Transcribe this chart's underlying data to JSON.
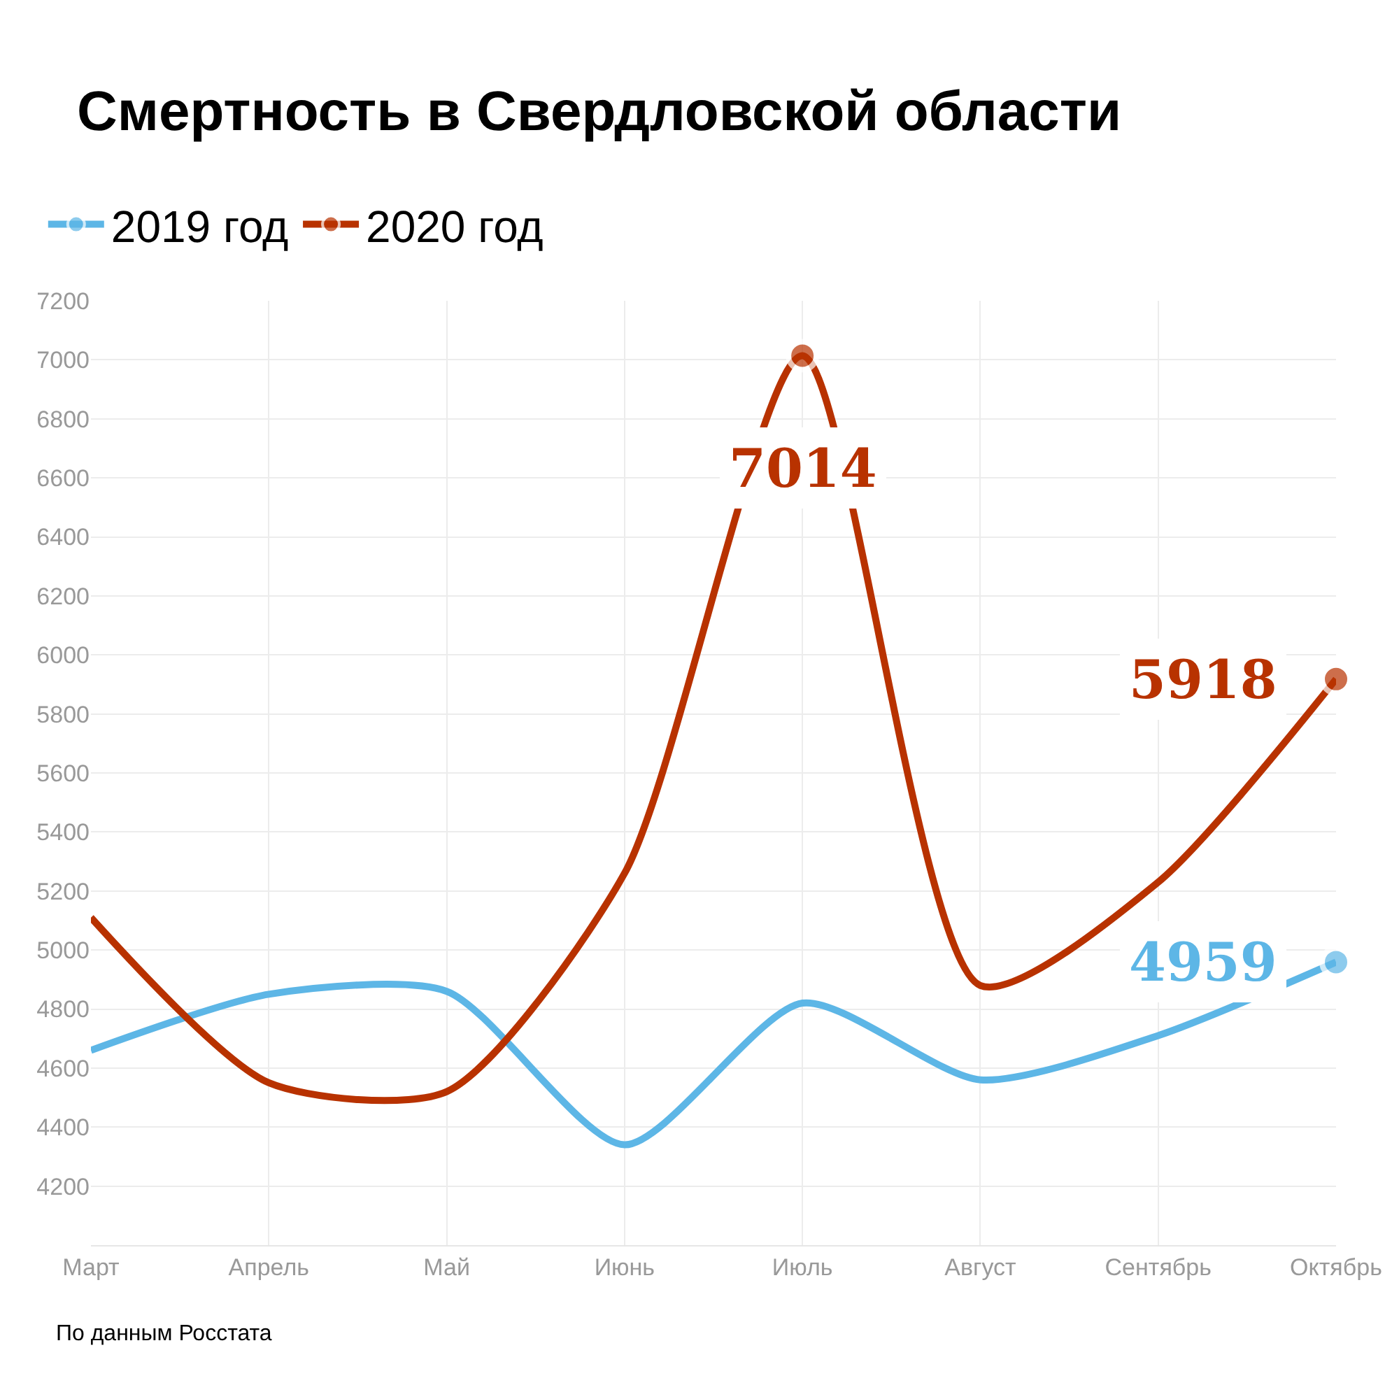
{
  "chart_data": {
    "type": "line",
    "title": "Смертность в Свердловской области",
    "categories": [
      "Март",
      "Апрель",
      "Май",
      "Июнь",
      "Июль",
      "Август",
      "Сентябрь",
      "Октябрь"
    ],
    "series": [
      {
        "name": "2019 год",
        "color": "#5db6e6",
        "values": [
          4660,
          4850,
          4860,
          4340,
          4820,
          4560,
          4710,
          4959
        ],
        "value_labels": [
          null,
          null,
          null,
          null,
          null,
          null,
          null,
          "4959"
        ]
      },
      {
        "name": "2020 год",
        "color": "#b83200",
        "values": [
          5110,
          4550,
          4520,
          5260,
          7014,
          4880,
          5230,
          5918
        ],
        "value_labels": [
          null,
          null,
          null,
          null,
          "7014",
          null,
          null,
          "5918"
        ]
      }
    ],
    "ylim": [
      4000,
      7200
    ],
    "yticks": [
      4200,
      4400,
      4600,
      4800,
      5000,
      5200,
      5400,
      5600,
      5800,
      6000,
      6200,
      6400,
      6600,
      6800,
      7000,
      7200
    ],
    "grid": true,
    "legend": "top left",
    "line_style": "solid",
    "annotations": [
      "По данным Росстата"
    ]
  }
}
